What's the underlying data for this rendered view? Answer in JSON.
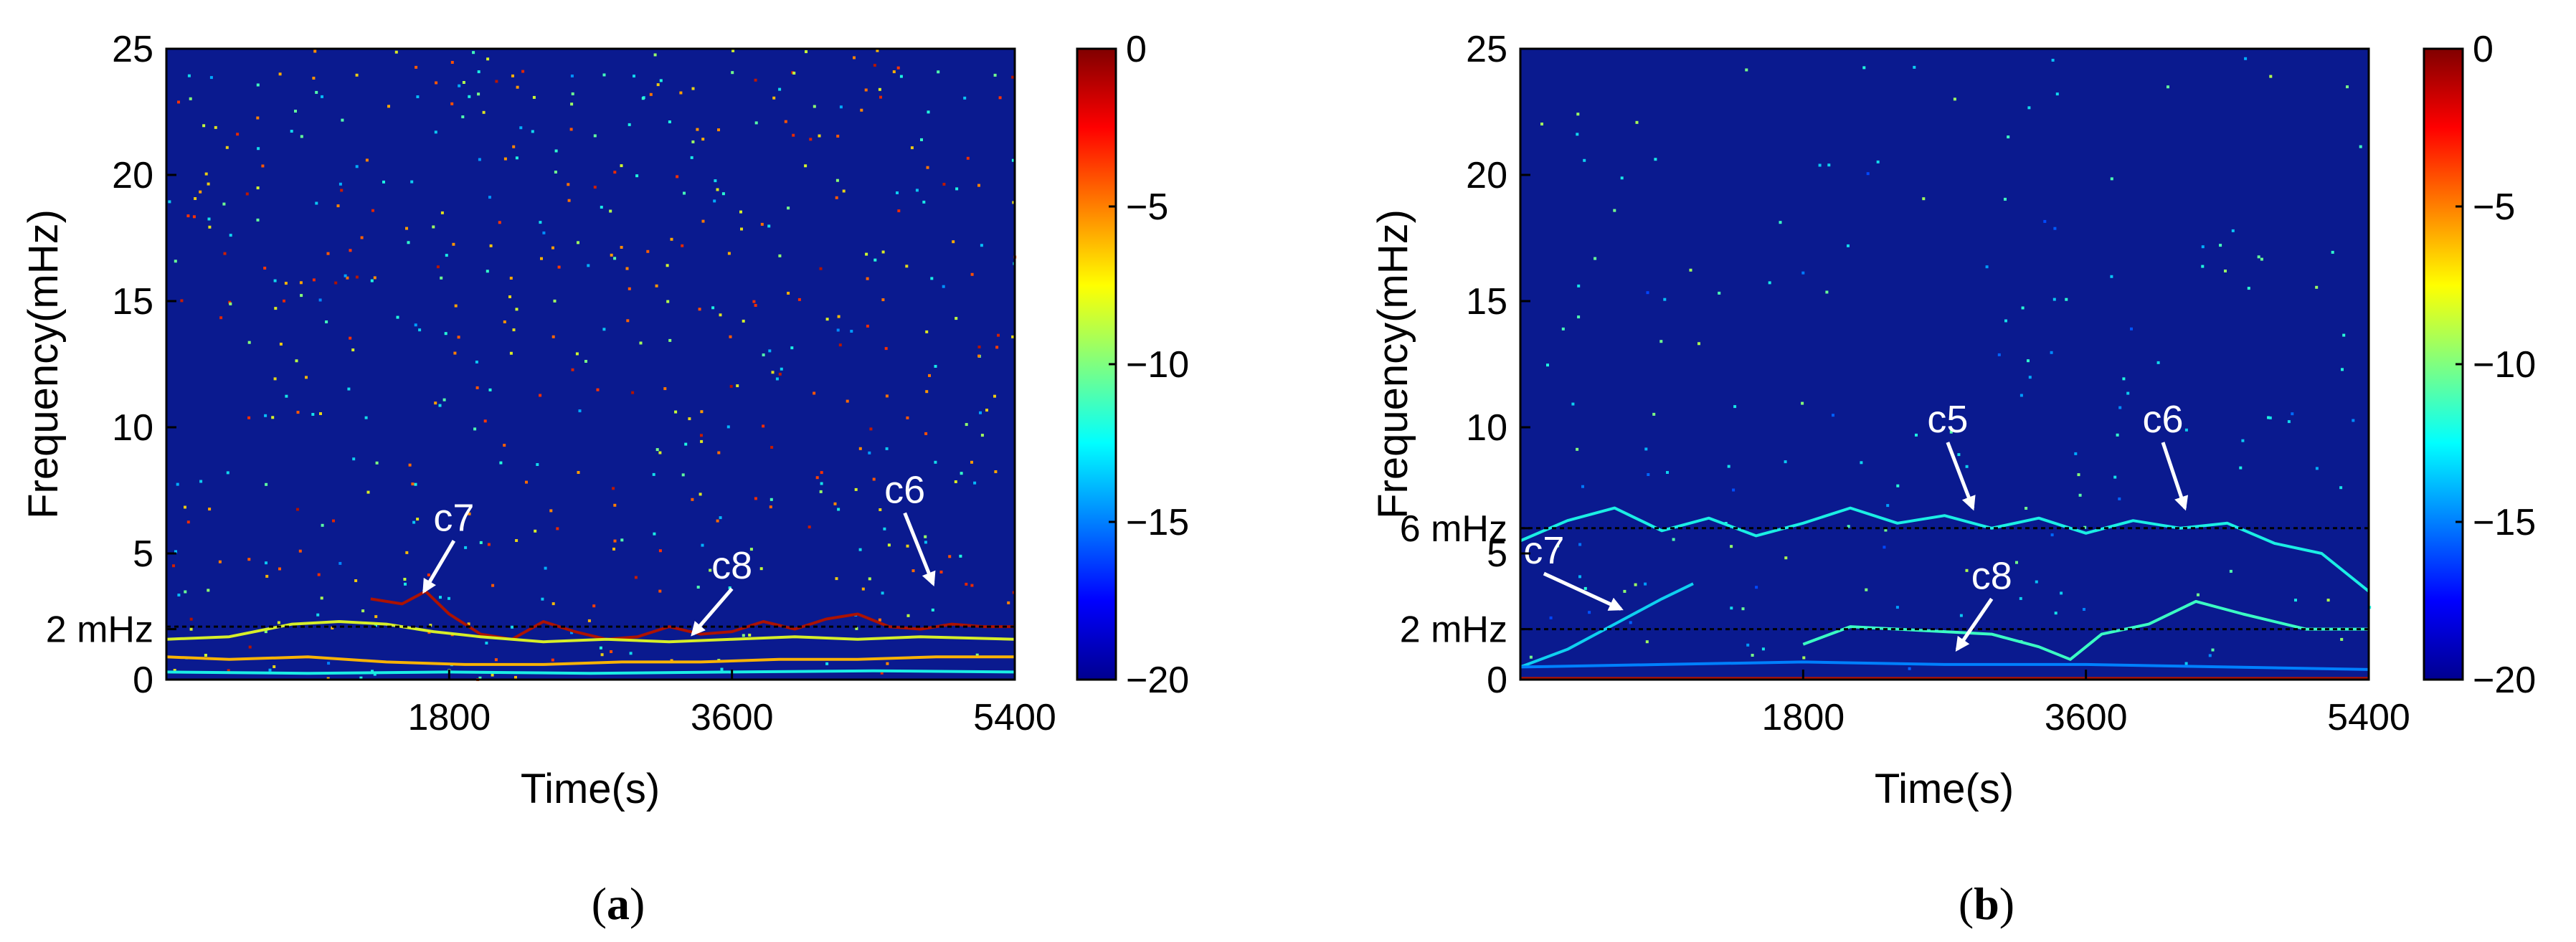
{
  "colors": {
    "background": "#0a1a8f",
    "annotation": "#ffffff",
    "guide_line": "#000000",
    "colormap": [
      "#00008f",
      "#0000ff",
      "#00aaff",
      "#22ffdd",
      "#ccff33",
      "#ffaa00",
      "#ff3300",
      "#800000"
    ]
  },
  "chart_data": [
    {
      "type": "heatmap",
      "panel": "a",
      "caption_open": "(",
      "caption_letter": "a",
      "caption_close": ")",
      "title": "",
      "xlabel": "Time(s)",
      "ylabel": "Frequency(mHz)",
      "xlim": [
        0,
        5400
      ],
      "ylim": [
        0,
        25
      ],
      "xticks": [
        {
          "value": 1800,
          "label": "1800"
        },
        {
          "value": 3600,
          "label": "3600"
        },
        {
          "value": 5400,
          "label": "5400"
        }
      ],
      "yticks": [
        {
          "value": 0,
          "label": "0"
        },
        {
          "value": 2,
          "label": "2 mHz"
        },
        {
          "value": 5,
          "label": "5"
        },
        {
          "value": 10,
          "label": "10"
        },
        {
          "value": 15,
          "label": "15"
        },
        {
          "value": 20,
          "label": "20"
        },
        {
          "value": 25,
          "label": "25"
        }
      ],
      "colorbar": {
        "min": -20,
        "max": 0,
        "ticks": [
          {
            "value": 0,
            "label": "0"
          },
          {
            "value": -5,
            "label": "−5"
          },
          {
            "value": -10,
            "label": "−10"
          },
          {
            "value": -15,
            "label": "−15"
          },
          {
            "value": -20,
            "label": "−20"
          }
        ]
      },
      "guide_lines": [
        {
          "y": 2.1
        }
      ],
      "ridges": [
        {
          "level": -1,
          "points": [
            [
              1300,
              3.2
            ],
            [
              1500,
              3.0
            ],
            [
              1650,
              3.5
            ],
            [
              1800,
              2.6
            ],
            [
              2000,
              1.8
            ],
            [
              2200,
              1.6
            ],
            [
              2400,
              2.3
            ],
            [
              2600,
              1.9
            ],
            [
              2800,
              1.6
            ],
            [
              3000,
              1.7
            ],
            [
              3200,
              2.1
            ],
            [
              3400,
              1.8
            ],
            [
              3600,
              1.9
            ],
            [
              3800,
              2.3
            ],
            [
              4000,
              2.0
            ],
            [
              4200,
              2.4
            ],
            [
              4400,
              2.6
            ],
            [
              4600,
              2.1
            ],
            [
              4800,
              2.0
            ],
            [
              5000,
              2.2
            ],
            [
              5200,
              2.1
            ],
            [
              5400,
              2.1
            ]
          ]
        },
        {
          "level": -8,
          "points": [
            [
              0,
              1.6
            ],
            [
              400,
              1.7
            ],
            [
              800,
              2.2
            ],
            [
              1100,
              2.3
            ],
            [
              1400,
              2.2
            ],
            [
              1700,
              1.9
            ],
            [
              2000,
              1.7
            ],
            [
              2400,
              1.5
            ],
            [
              2800,
              1.6
            ],
            [
              3200,
              1.5
            ],
            [
              3600,
              1.6
            ],
            [
              4000,
              1.7
            ],
            [
              4400,
              1.6
            ],
            [
              4800,
              1.7
            ],
            [
              5400,
              1.6
            ]
          ]
        },
        {
          "level": -6,
          "points": [
            [
              0,
              0.9
            ],
            [
              400,
              0.8
            ],
            [
              900,
              0.9
            ],
            [
              1400,
              0.7
            ],
            [
              1900,
              0.6
            ],
            [
              2400,
              0.6
            ],
            [
              2900,
              0.7
            ],
            [
              3400,
              0.7
            ],
            [
              3900,
              0.8
            ],
            [
              4400,
              0.8
            ],
            [
              4900,
              0.9
            ],
            [
              5400,
              0.9
            ]
          ]
        },
        {
          "level": -12,
          "points": [
            [
              0,
              0.3
            ],
            [
              900,
              0.25
            ],
            [
              1800,
              0.3
            ],
            [
              2700,
              0.25
            ],
            [
              3600,
              0.3
            ],
            [
              4500,
              0.35
            ],
            [
              5400,
              0.3
            ]
          ]
        }
      ],
      "annotations": [
        {
          "label": "c7",
          "x": 1830,
          "y": 5.9,
          "arrow_to": [
            1640,
            3.5
          ]
        },
        {
          "label": "c8",
          "x": 3600,
          "y": 4.0,
          "arrow_to": [
            3350,
            1.8
          ]
        },
        {
          "label": "c6",
          "x": 4700,
          "y": 7.0,
          "arrow_to": [
            4880,
            3.8
          ]
        }
      ]
    },
    {
      "type": "heatmap",
      "panel": "b",
      "caption_open": "(",
      "caption_letter": "b",
      "caption_close": ")",
      "title": "",
      "xlabel": "Time(s)",
      "ylabel": "Frequency(mHz)",
      "xlim": [
        0,
        5400
      ],
      "ylim": [
        0,
        25
      ],
      "xticks": [
        {
          "value": 1800,
          "label": "1800"
        },
        {
          "value": 3600,
          "label": "3600"
        },
        {
          "value": 5400,
          "label": "5400"
        }
      ],
      "yticks": [
        {
          "value": 0,
          "label": "0"
        },
        {
          "value": 2,
          "label": "2 mHz"
        },
        {
          "value": 5,
          "label": "5"
        },
        {
          "value": 6,
          "label": "6 mHz"
        },
        {
          "value": 10,
          "label": "10"
        },
        {
          "value": 15,
          "label": "15"
        },
        {
          "value": 20,
          "label": "20"
        },
        {
          "value": 25,
          "label": "25"
        }
      ],
      "colorbar": {
        "min": -20,
        "max": 0,
        "ticks": [
          {
            "value": 0,
            "label": "0"
          },
          {
            "value": -5,
            "label": "−5"
          },
          {
            "value": -10,
            "label": "−10"
          },
          {
            "value": -15,
            "label": "−15"
          },
          {
            "value": -20,
            "label": "−20"
          }
        ]
      },
      "guide_lines": [
        {
          "y": 6.0
        },
        {
          "y": 2.0
        }
      ],
      "ridges": [
        {
          "level": -12,
          "points": [
            [
              0,
              5.5
            ],
            [
              300,
              6.3
            ],
            [
              600,
              6.8
            ],
            [
              900,
              5.9
            ],
            [
              1200,
              6.4
            ],
            [
              1500,
              5.7
            ],
            [
              1800,
              6.2
            ],
            [
              2100,
              6.8
            ],
            [
              2400,
              6.2
            ],
            [
              2700,
              6.5
            ],
            [
              3000,
              6.0
            ],
            [
              3300,
              6.4
            ],
            [
              3600,
              5.8
            ],
            [
              3900,
              6.3
            ],
            [
              4200,
              6.0
            ],
            [
              4500,
              6.2
            ],
            [
              4800,
              5.4
            ],
            [
              5100,
              5.0
            ],
            [
              5400,
              3.5
            ]
          ]
        },
        {
          "level": -13,
          "points": [
            [
              0,
              0.5
            ],
            [
              300,
              1.2
            ],
            [
              600,
              2.2
            ],
            [
              900,
              3.2
            ],
            [
              1100,
              3.8
            ]
          ]
        },
        {
          "level": -11,
          "points": [
            [
              1800,
              1.4
            ],
            [
              2100,
              2.1
            ],
            [
              2400,
              2.0
            ],
            [
              2700,
              1.9
            ],
            [
              3000,
              1.8
            ],
            [
              3300,
              1.3
            ],
            [
              3500,
              0.8
            ],
            [
              3700,
              1.8
            ],
            [
              4000,
              2.2
            ],
            [
              4300,
              3.1
            ],
            [
              4600,
              2.6
            ],
            [
              5000,
              2.0
            ],
            [
              5400,
              2.0
            ]
          ]
        },
        {
          "level": -15,
          "points": [
            [
              0,
              0.5
            ],
            [
              900,
              0.6
            ],
            [
              1800,
              0.7
            ],
            [
              2700,
              0.6
            ],
            [
              3600,
              0.6
            ],
            [
              4500,
              0.5
            ],
            [
              5400,
              0.4
            ]
          ]
        },
        {
          "level": -1,
          "points": [
            [
              0,
              0.05
            ],
            [
              5400,
              0.05
            ]
          ]
        }
      ],
      "annotations": [
        {
          "label": "c7",
          "x": 150,
          "y": 4.6,
          "arrow_to": [
            640,
            2.8
          ]
        },
        {
          "label": "c5",
          "x": 2720,
          "y": 9.8,
          "arrow_to": [
            2880,
            6.8
          ]
        },
        {
          "label": "c6",
          "x": 4090,
          "y": 9.8,
          "arrow_to": [
            4230,
            6.8
          ]
        },
        {
          "label": "c8",
          "x": 3000,
          "y": 3.6,
          "arrow_to": [
            2780,
            1.2
          ]
        }
      ]
    }
  ]
}
